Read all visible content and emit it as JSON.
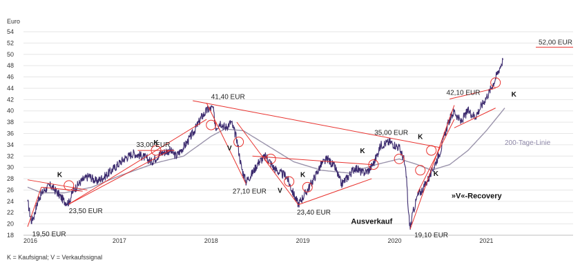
{
  "chart_data": {
    "type": "line",
    "ylabel": "Euro",
    "ylim": [
      18,
      54
    ],
    "yticks": [
      18,
      20,
      22,
      24,
      26,
      28,
      30,
      32,
      34,
      36,
      38,
      40,
      42,
      44,
      46,
      48,
      50,
      52,
      54
    ],
    "xticks": [
      "2016",
      "2017",
      "2018",
      "2019",
      "2020",
      "2021"
    ],
    "grid": true,
    "series": [
      {
        "name": "",
        "color": "#3b2a6e",
        "points": [
          [
            2016.0,
            24.0
          ],
          [
            2016.04,
            20.5
          ],
          [
            2016.07,
            21.5
          ],
          [
            2016.12,
            24.5
          ],
          [
            2016.18,
            26.0
          ],
          [
            2016.25,
            26.8
          ],
          [
            2016.32,
            25.6
          ],
          [
            2016.4,
            24.0
          ],
          [
            2016.45,
            23.8
          ],
          [
            2016.5,
            26.0
          ],
          [
            2016.58,
            27.5
          ],
          [
            2016.67,
            28.5
          ],
          [
            2016.75,
            27.5
          ],
          [
            2016.85,
            28.5
          ],
          [
            2016.95,
            30.0
          ],
          [
            2017.05,
            31.5
          ],
          [
            2017.15,
            32.5
          ],
          [
            2017.25,
            32.0
          ],
          [
            2017.35,
            31.0
          ],
          [
            2017.45,
            32.5
          ],
          [
            2017.55,
            33.0
          ],
          [
            2017.62,
            32.0
          ],
          [
            2017.72,
            34.0
          ],
          [
            2017.8,
            36.0
          ],
          [
            2017.9,
            39.0
          ],
          [
            2017.96,
            40.2
          ],
          [
            2018.02,
            40.5
          ],
          [
            2018.05,
            37.0
          ],
          [
            2018.1,
            38.0
          ],
          [
            2018.15,
            37.0
          ],
          [
            2018.22,
            38.0
          ],
          [
            2018.28,
            35.0
          ],
          [
            2018.33,
            30.0
          ],
          [
            2018.38,
            27.5
          ],
          [
            2018.45,
            29.0
          ],
          [
            2018.52,
            31.0
          ],
          [
            2018.6,
            32.0
          ],
          [
            2018.68,
            30.0
          ],
          [
            2018.75,
            29.0
          ],
          [
            2018.82,
            28.5
          ],
          [
            2018.88,
            26.0
          ],
          [
            2018.95,
            23.5
          ],
          [
            2019.05,
            26.0
          ],
          [
            2019.12,
            28.0
          ],
          [
            2019.2,
            30.5
          ],
          [
            2019.27,
            31.5
          ],
          [
            2019.35,
            30.0
          ],
          [
            2019.42,
            27.0
          ],
          [
            2019.5,
            28.5
          ],
          [
            2019.57,
            30.0
          ],
          [
            2019.65,
            29.0
          ],
          [
            2019.72,
            29.5
          ],
          [
            2019.78,
            31.0
          ],
          [
            2019.85,
            34.0
          ],
          [
            2019.95,
            34.5
          ],
          [
            2020.0,
            34.0
          ],
          [
            2020.05,
            33.5
          ],
          [
            2020.1,
            31.5
          ],
          [
            2020.13,
            28.0
          ],
          [
            2020.15,
            22.0
          ],
          [
            2020.17,
            19.3
          ],
          [
            2020.2,
            22.0
          ],
          [
            2020.25,
            25.0
          ],
          [
            2020.3,
            26.0
          ],
          [
            2020.4,
            29.0
          ],
          [
            2020.45,
            31.0
          ],
          [
            2020.5,
            33.0
          ],
          [
            2020.55,
            36.0
          ],
          [
            2020.6,
            38.5
          ],
          [
            2020.65,
            40.0
          ],
          [
            2020.72,
            38.0
          ],
          [
            2020.8,
            40.0
          ],
          [
            2020.88,
            39.0
          ],
          [
            2020.95,
            41.0
          ],
          [
            2021.02,
            43.0
          ],
          [
            2021.08,
            45.0
          ],
          [
            2021.13,
            47.0
          ],
          [
            2021.18,
            49.0
          ]
        ]
      },
      {
        "name": "200-Tage-Linie",
        "color": "#9a93ab",
        "points": [
          [
            2016.0,
            26.5
          ],
          [
            2016.15,
            25.5
          ],
          [
            2016.4,
            25.5
          ],
          [
            2016.7,
            26.5
          ],
          [
            2017.0,
            28.5
          ],
          [
            2017.4,
            30.8
          ],
          [
            2017.7,
            32.0
          ],
          [
            2018.0,
            35.5
          ],
          [
            2018.15,
            36.8
          ],
          [
            2018.35,
            36.5
          ],
          [
            2018.6,
            34.0
          ],
          [
            2018.9,
            31.0
          ],
          [
            2019.2,
            29.5
          ],
          [
            2019.5,
            29.0
          ],
          [
            2019.8,
            30.5
          ],
          [
            2020.05,
            31.5
          ],
          [
            2020.25,
            30.5
          ],
          [
            2020.4,
            29.5
          ],
          [
            2020.6,
            30.5
          ],
          [
            2020.8,
            33.0
          ],
          [
            2021.0,
            36.5
          ],
          [
            2021.2,
            40.5
          ]
        ]
      }
    ],
    "annotations": {
      "prices": [
        {
          "text": "19,50 EUR",
          "x": 2016.05,
          "y": 19.5
        },
        {
          "text": "23,50 EUR",
          "x": 2016.45,
          "y": 23.6
        },
        {
          "text": "33,00 EUR",
          "x": 2017.35,
          "y": 33.0
        },
        {
          "text": "41,40 EUR",
          "x": 2018.0,
          "y": 41.4
        },
        {
          "text": "27,10 EUR",
          "x": 2018.4,
          "y": 27.1
        },
        {
          "text": "23,40 EUR",
          "x": 2018.95,
          "y": 23.4
        },
        {
          "text": "35,00 EUR",
          "x": 2019.9,
          "y": 35.0
        },
        {
          "text": "19,10 EUR",
          "x": 2020.2,
          "y": 19.1
        },
        {
          "text": "42,10 EUR",
          "x": 2020.7,
          "y": 42.1
        }
      ],
      "signals": [
        {
          "text": "K",
          "x": 2016.35,
          "y": 28.3
        },
        {
          "text": "K",
          "x": 2017.4,
          "y": 34.0
        },
        {
          "text": "V",
          "x": 2018.2,
          "y": 33.0
        },
        {
          "text": "V",
          "x": 2018.75,
          "y": 25.5
        },
        {
          "text": "K",
          "x": 2019.0,
          "y": 28.3
        },
        {
          "text": "K",
          "x": 2019.65,
          "y": 32.5
        },
        {
          "text": "K",
          "x": 2020.28,
          "y": 35.0
        },
        {
          "text": "K",
          "x": 2020.45,
          "y": 28.5
        },
        {
          "text": "K",
          "x": 2021.3,
          "y": 42.5
        }
      ],
      "events": [
        {
          "text": "Ausverkauf",
          "x": 2019.75,
          "y": 20.0
        },
        {
          "text": "»V«-Recovery",
          "x": 2020.62,
          "y": 24.5
        }
      ],
      "ma_label": {
        "text": "200-Tage-Linie",
        "x": 2021.2,
        "y": 34.0
      },
      "target": {
        "text": "52,00 EUR",
        "y": 52.0
      }
    },
    "trendlines": [
      [
        [
          2016.0,
          27.8
        ],
        [
          2016.65,
          26.0
        ]
      ],
      [
        [
          2016.0,
          19.5
        ],
        [
          2016.15,
          26.5
        ]
      ],
      [
        [
          2016.15,
          26.5
        ],
        [
          2016.6,
          25.8
        ]
      ],
      [
        [
          2016.45,
          23.5
        ],
        [
          2017.55,
          33.0
        ]
      ],
      [
        [
          2016.45,
          23.5
        ],
        [
          2017.95,
          38.5
        ]
      ],
      [
        [
          2017.2,
          33.0
        ],
        [
          2017.6,
          33.0
        ]
      ],
      [
        [
          2017.8,
          41.8
        ],
        [
          2020.5,
          33.5
        ]
      ],
      [
        [
          2017.95,
          41.4
        ],
        [
          2018.38,
          27.1
        ]
      ],
      [
        [
          2018.28,
          38.0
        ],
        [
          2018.95,
          23.4
        ]
      ],
      [
        [
          2018.45,
          32.0
        ],
        [
          2019.75,
          30.5
        ]
      ],
      [
        [
          2018.95,
          23.4
        ],
        [
          2019.75,
          28.0
        ]
      ],
      [
        [
          2020.17,
          19.1
        ],
        [
          2020.65,
          41.0
        ]
      ],
      [
        [
          2020.25,
          25.5
        ],
        [
          2020.65,
          38.5
        ]
      ],
      [
        [
          2020.6,
          42.1
        ],
        [
          2021.1,
          44.0
        ]
      ],
      [
        [
          2020.65,
          37.0
        ],
        [
          2021.1,
          40.5
        ]
      ]
    ],
    "circles": [
      {
        "x": 2016.45,
        "y": 26.8
      },
      {
        "x": 2017.4,
        "y": 33.0
      },
      {
        "x": 2018.0,
        "y": 37.5
      },
      {
        "x": 2018.3,
        "y": 34.5
      },
      {
        "x": 2018.65,
        "y": 31.5
      },
      {
        "x": 2018.85,
        "y": 27.5
      },
      {
        "x": 2019.05,
        "y": 26.5
      },
      {
        "x": 2019.77,
        "y": 30.5
      },
      {
        "x": 2020.05,
        "y": 31.5
      },
      {
        "x": 2020.28,
        "y": 29.5
      },
      {
        "x": 2020.4,
        "y": 33.0
      },
      {
        "x": 2021.1,
        "y": 45.0
      }
    ],
    "footnote": "K = Kaufsignal; V = Verkaufssignal"
  }
}
